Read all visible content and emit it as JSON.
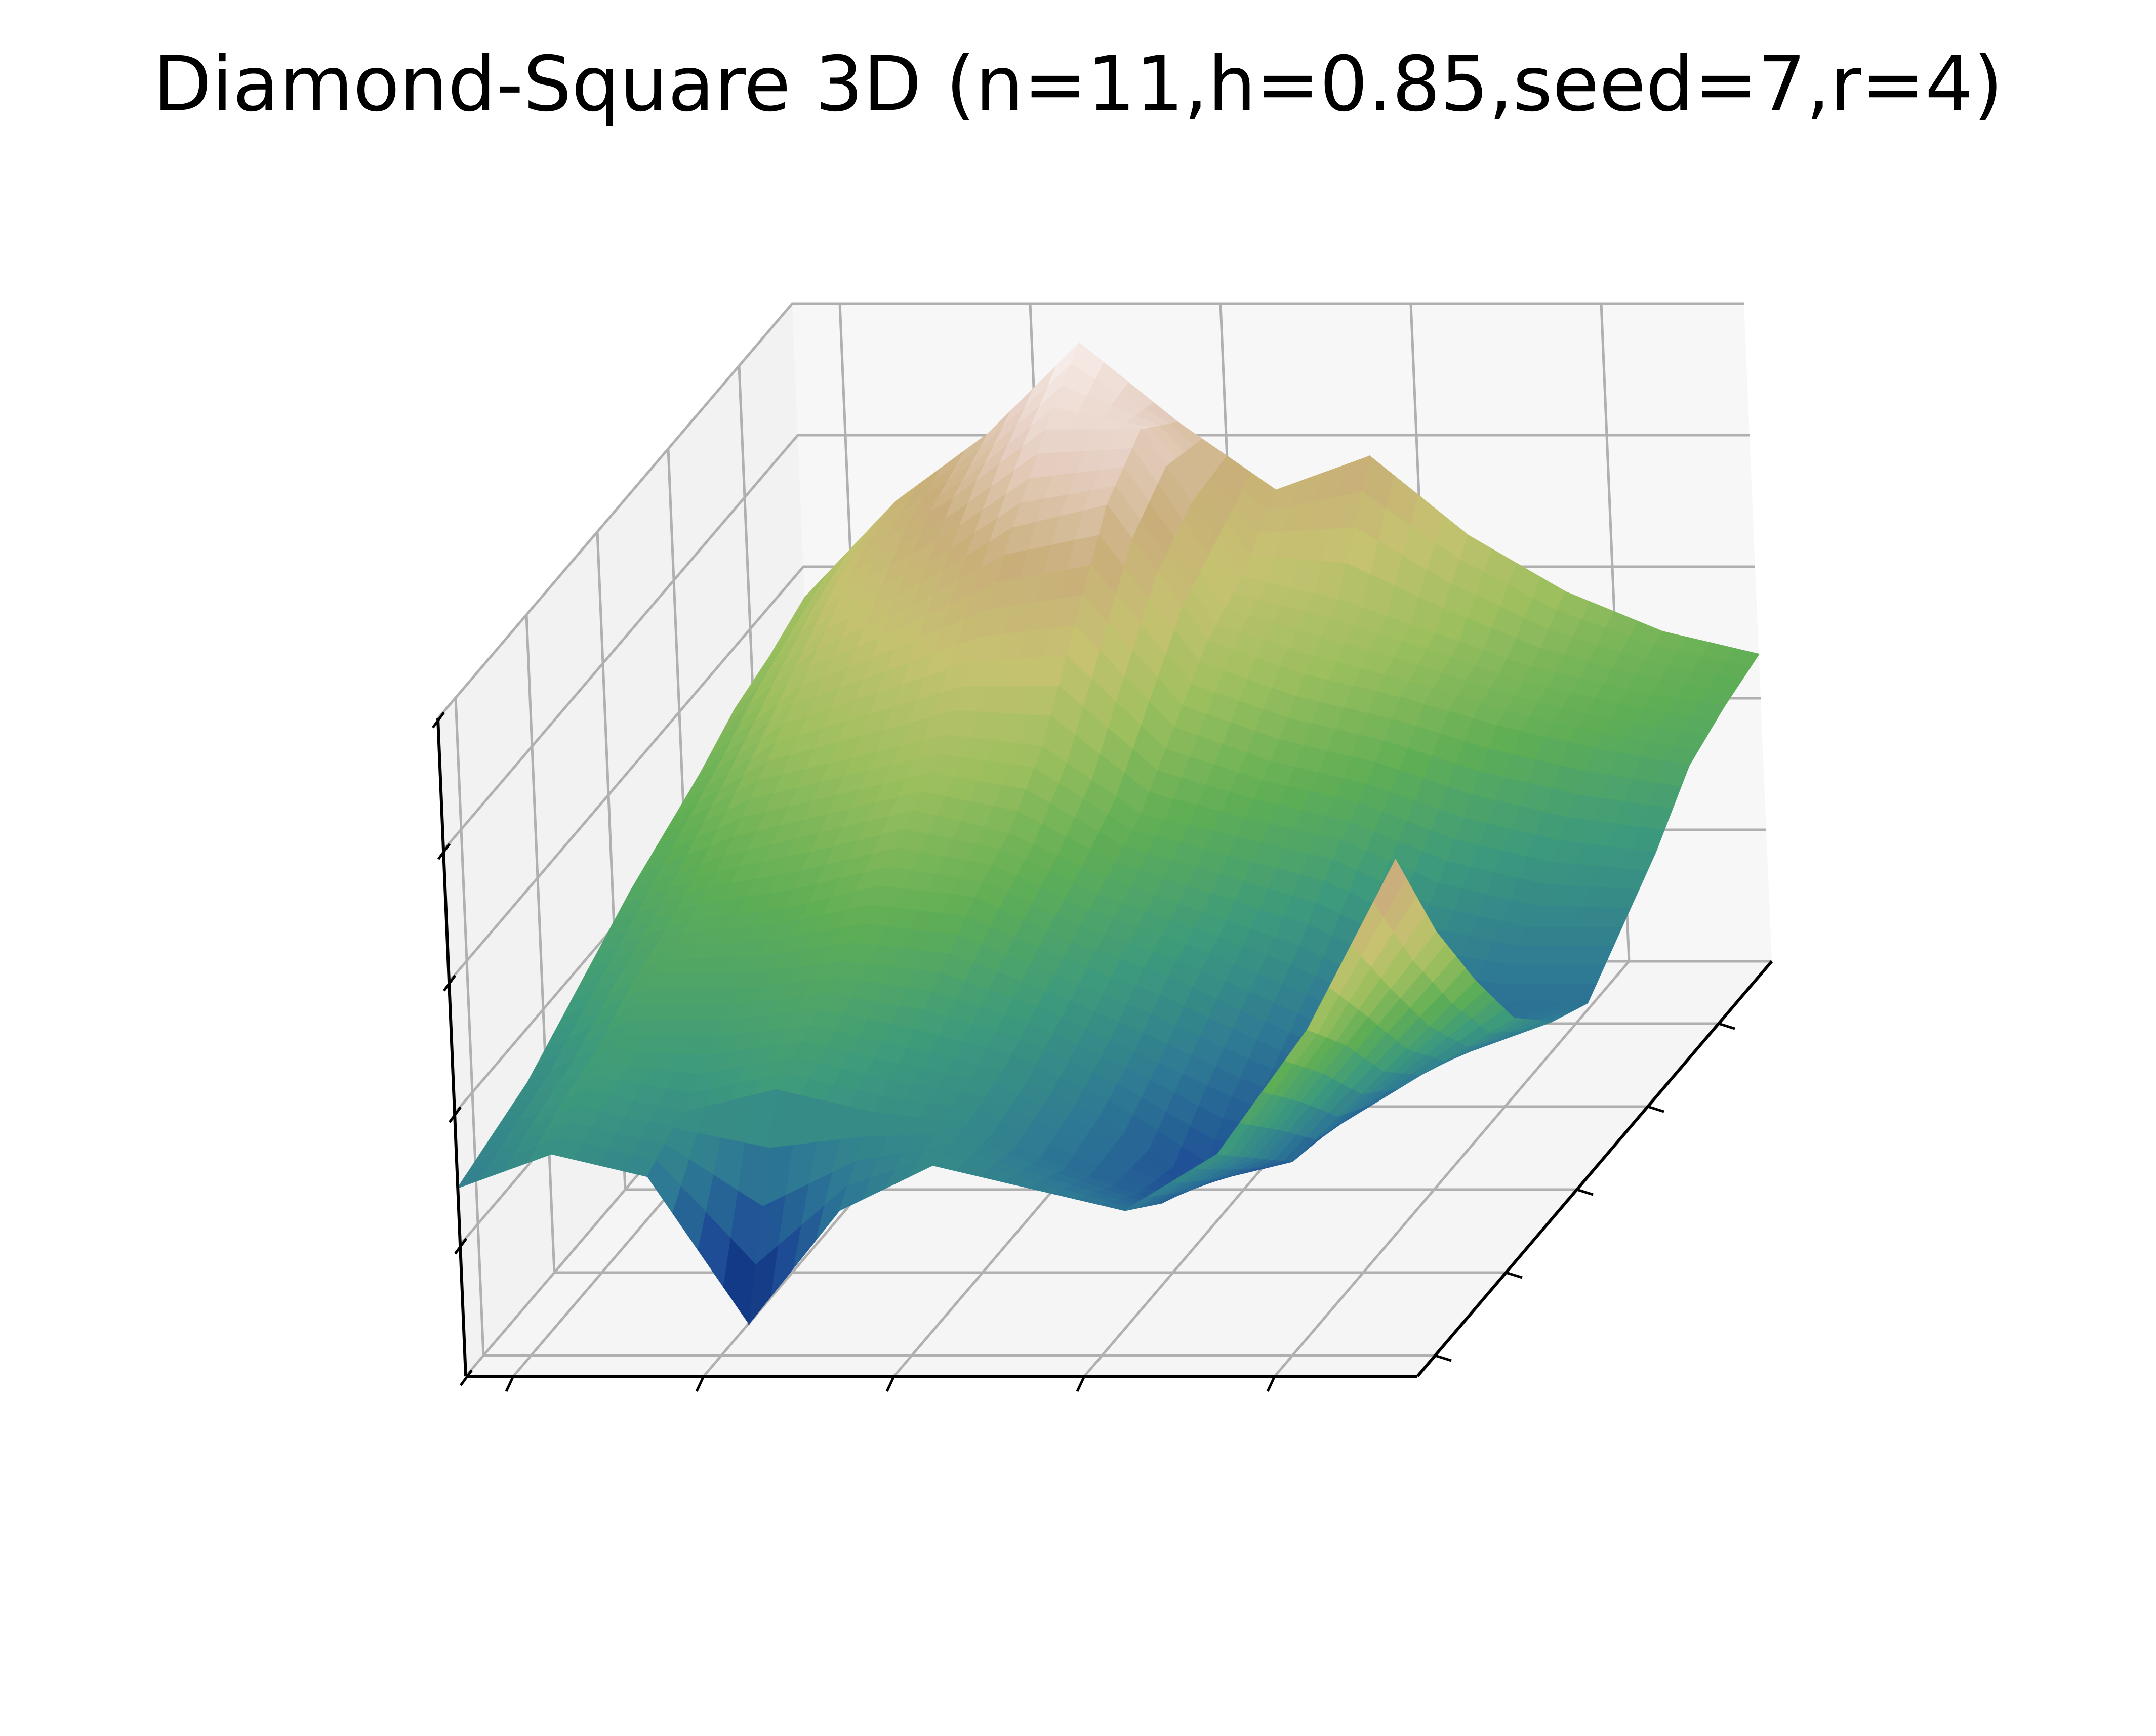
{
  "chart_data": {
    "type": "surface",
    "title": "Diamond-Square 3D (n=11,h=0.85,seed=7,r=4)",
    "xlabel": "",
    "ylabel": "",
    "zlabel": "",
    "tick_labels_visible": false,
    "grid": true,
    "colormap": "gist_earth",
    "colormap_stops": [
      "#0b2a7a",
      "#1f4f96",
      "#2e7a94",
      "#3d9a7c",
      "#5fae55",
      "#9cbf5e",
      "#c6c270",
      "#c9ae7a",
      "#e6cfc3",
      "#fbf3f0"
    ],
    "pane_colors": {
      "left_wall": "#f2f2f2",
      "back_wall": "#f7f7f7",
      "floor": "#f5f5f5",
      "grid": "#b0b0b0",
      "axis": "#000000"
    },
    "height_grid": [
      [
        0.55,
        0.72,
        0.84,
        1.0,
        0.86,
        0.74,
        0.8,
        0.66,
        0.56,
        0.49,
        0.45
      ],
      [
        0.52,
        0.7,
        0.8,
        0.92,
        0.92,
        0.66,
        0.62,
        0.56,
        0.5,
        0.46,
        0.43
      ],
      [
        0.5,
        0.64,
        0.72,
        0.82,
        0.86,
        0.62,
        0.56,
        0.52,
        0.47,
        0.43,
        0.4
      ],
      [
        0.46,
        0.58,
        0.64,
        0.7,
        0.72,
        0.54,
        0.48,
        0.44,
        0.38,
        0.34,
        0.32
      ],
      [
        0.43,
        0.52,
        0.56,
        0.6,
        0.58,
        0.46,
        0.42,
        0.38,
        0.3,
        0.26,
        0.26
      ],
      [
        0.4,
        0.46,
        0.5,
        0.54,
        0.5,
        0.42,
        0.36,
        0.3,
        0.22,
        0.2,
        0.2
      ],
      [
        0.36,
        0.42,
        0.44,
        0.48,
        0.46,
        0.38,
        0.32,
        0.24,
        0.16,
        0.18,
        0.24
      ],
      [
        0.32,
        0.4,
        0.4,
        0.42,
        0.4,
        0.34,
        0.26,
        0.18,
        0.12,
        0.22,
        0.32
      ],
      [
        0.28,
        0.36,
        0.36,
        0.38,
        0.34,
        0.3,
        0.22,
        0.1,
        0.14,
        0.3,
        0.46
      ],
      [
        0.26,
        0.34,
        0.3,
        0.34,
        0.3,
        0.28,
        0.2,
        0.14,
        0.22,
        0.42,
        0.62
      ],
      [
        0.24,
        0.3,
        0.26,
        0.0,
        0.2,
        0.28,
        0.24,
        0.2,
        0.3,
        0.52,
        0.82
      ]
    ]
  }
}
